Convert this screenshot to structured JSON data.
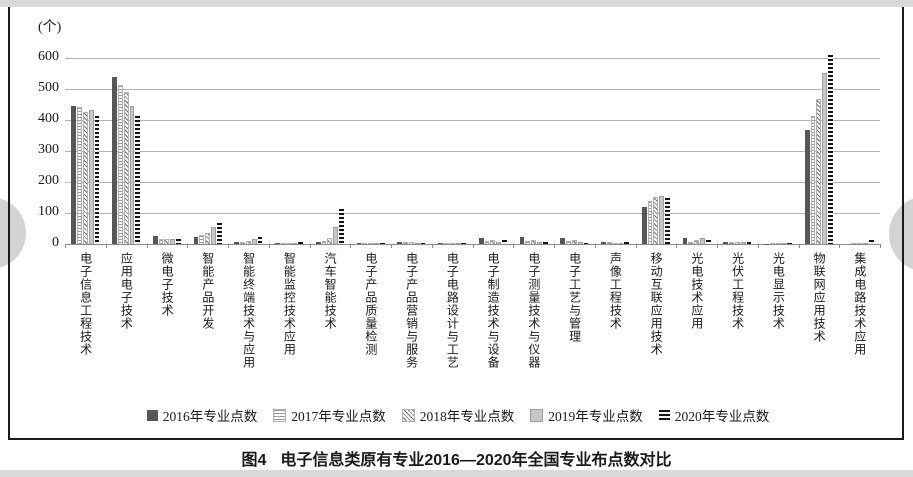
{
  "page": {
    "figure_label": "图4",
    "caption": "电子信息类原有专业2016—2020年全国专业布点数对比"
  },
  "chart_data": {
    "type": "bar",
    "title": "",
    "unit_label": "(个)",
    "xlabel": "",
    "ylabel": "",
    "ylim": [
      0,
      600
    ],
    "yticks": [
      0,
      100,
      200,
      300,
      400,
      500,
      600
    ],
    "grid": true,
    "legend_position": "bottom",
    "categories": [
      "电子信息工程技术",
      "应用电子技术",
      "微电子技术",
      "智能产品开发",
      "智能终端技术与应用",
      "智能监控技术应用",
      "汽车智能技术",
      "电子产品质量检测",
      "电子产品营销与服务",
      "电子电路设计与工艺",
      "电子制造技术与设备",
      "电子测量技术与仪器",
      "电子工艺与管理",
      "声像工程技术",
      "移动互联应用技术",
      "光电技术应用",
      "光伏工程技术",
      "光电显示技术",
      "物联网应用技术",
      "集成电路技术应用"
    ],
    "series": [
      {
        "name": "2016年专业点数",
        "pattern": "solid-dark-gray",
        "values": [
          445,
          540,
          27,
          22,
          8,
          4,
          5,
          4,
          7,
          3,
          18,
          23,
          18,
          8,
          118,
          20,
          5,
          1,
          368,
          0
        ]
      },
      {
        "name": "2017年专业点数",
        "pattern": "horizontal-thin-lines",
        "values": [
          443,
          512,
          15,
          30,
          5,
          3,
          10,
          2,
          5,
          2,
          10,
          10,
          10,
          5,
          138,
          8,
          5,
          1,
          413,
          0
        ]
      },
      {
        "name": "2018年专业点数",
        "pattern": "diagonal-hatch",
        "values": [
          425,
          490,
          17,
          35,
          10,
          3,
          20,
          3,
          6,
          2,
          14,
          12,
          12,
          3,
          152,
          14,
          8,
          1,
          467,
          0
        ]
      },
      {
        "name": "2019年专业点数",
        "pattern": "solid-light-gray",
        "values": [
          431,
          445,
          15,
          55,
          17,
          4,
          55,
          3,
          4,
          2,
          8,
          6,
          5,
          4,
          155,
          18,
          8,
          1,
          553,
          2
        ]
      },
      {
        "name": "2020年专业点数",
        "pattern": "bold-horizontal-stripes",
        "values": [
          412,
          412,
          15,
          68,
          23,
          5,
          112,
          3,
          3,
          2,
          12,
          7,
          4,
          6,
          148,
          12,
          7,
          2,
          610,
          12
        ]
      }
    ],
    "colors": {
      "bar_dark": "#575757",
      "bar_light_gray": "#c7c7c7",
      "stripe_dark": "#141414",
      "gridline": "#b3b3b3",
      "page_edge": "#d9d9d9",
      "nav_circle": "#d3d3d3"
    }
  }
}
